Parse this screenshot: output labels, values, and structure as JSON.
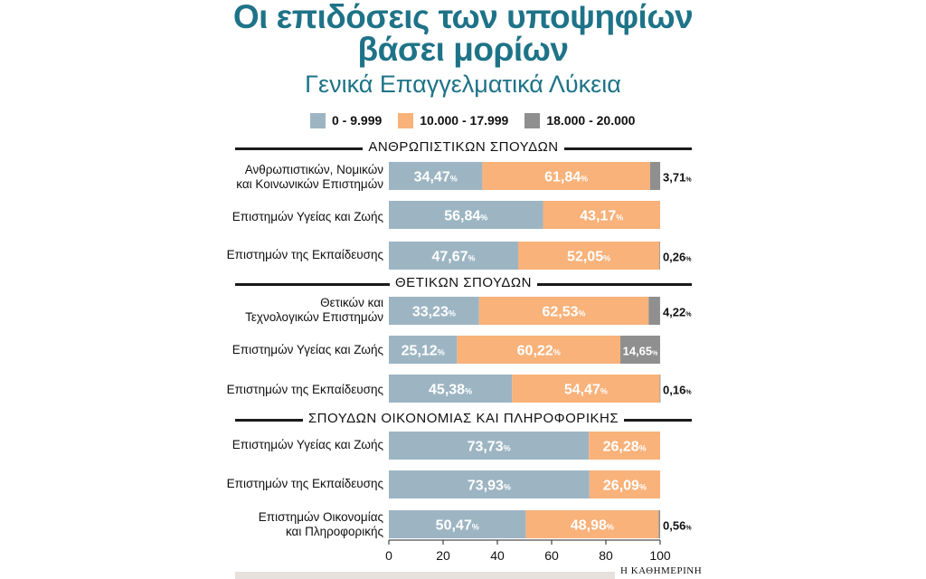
{
  "title_line1": "Οι επιδόσεις των υποψηφίων",
  "title_line2": "βάσει μορίων",
  "subtitle": "Γενικά Επαγγελματικά Λύκεια",
  "source": "Η ΚΑΘΗΜΕΡΙΝΗ",
  "colors": {
    "low": "#9db5c3",
    "mid": "#f8b27a",
    "high": "#8f8f8f",
    "title": "#1e7388"
  },
  "chart_data": {
    "type": "bar",
    "orientation": "horizontal-stacked-100",
    "title": "Οι επιδόσεις των υποψηφίων βάσει μορίων",
    "subtitle": "Γενικά Επαγγελματικά Λύκεια",
    "xlim": [
      0,
      100
    ],
    "xticks": [
      0,
      20,
      40,
      60,
      80,
      100
    ],
    "legend": [
      "0 - 9.999",
      "10.000 - 17.999",
      "18.000 - 20.000"
    ],
    "legend_position": "top",
    "series_colors": [
      "#9db5c3",
      "#f8b27a",
      "#8f8f8f"
    ],
    "groups": [
      {
        "name": "ΑΝΘΡΩΠΙΣΤΙΚΩΝ ΣΠΟΥΔΩΝ",
        "rows": [
          {
            "label": [
              "Ανθρωπιστικών, Νομικών",
              "και Κοινωνικών Επιστημών"
            ],
            "values": [
              34.47,
              61.84,
              3.71
            ],
            "texts": [
              "34,47",
              "61,84",
              "3,71"
            ]
          },
          {
            "label": [
              "Επιστημών Υγείας και Ζωής"
            ],
            "values": [
              56.84,
              43.17,
              0
            ],
            "texts": [
              "56,84",
              "43,17",
              ""
            ]
          },
          {
            "label": [
              "Επιστημών της Εκπαίδευσης"
            ],
            "values": [
              47.67,
              52.05,
              0.26
            ],
            "texts": [
              "47,67",
              "52,05",
              "0,26"
            ]
          }
        ]
      },
      {
        "name": "ΘΕΤΙΚΩΝ ΣΠΟΥΔΩΝ",
        "rows": [
          {
            "label": [
              "Θετικών και",
              "Τεχνολογικών Επιστημών"
            ],
            "values": [
              33.23,
              62.53,
              4.22
            ],
            "texts": [
              "33,23",
              "62,53",
              "4,22"
            ]
          },
          {
            "label": [
              "Επιστημών Υγείας και Ζωής"
            ],
            "values": [
              25.12,
              60.22,
              14.65
            ],
            "texts": [
              "25,12",
              "60,22",
              "14,65"
            ]
          },
          {
            "label": [
              "Επιστημών της Εκπαίδευσης"
            ],
            "values": [
              45.38,
              54.47,
              0.16
            ],
            "texts": [
              "45,38",
              "54,47",
              "0,16"
            ]
          }
        ]
      },
      {
        "name": "ΣΠΟΥΔΩΝ ΟΙΚΟΝΟΜΙΑΣ ΚΑΙ ΠΛΗΡΟΦΟΡΙΚΗΣ",
        "rows": [
          {
            "label": [
              "Επιστημών Υγείας και Ζωής"
            ],
            "values": [
              73.73,
              26.28,
              0
            ],
            "texts": [
              "73,73",
              "26,28",
              ""
            ]
          },
          {
            "label": [
              "Επιστημών της Εκπαίδευσης"
            ],
            "values": [
              73.93,
              26.09,
              0
            ],
            "texts": [
              "73,93",
              "26,09",
              ""
            ]
          },
          {
            "label": [
              "Επιστημών Οικονομίας",
              "και Πληροφορικής"
            ],
            "values": [
              50.47,
              48.98,
              0.56
            ],
            "texts": [
              "50,47",
              "48,98",
              "0,56"
            ]
          }
        ]
      }
    ]
  }
}
